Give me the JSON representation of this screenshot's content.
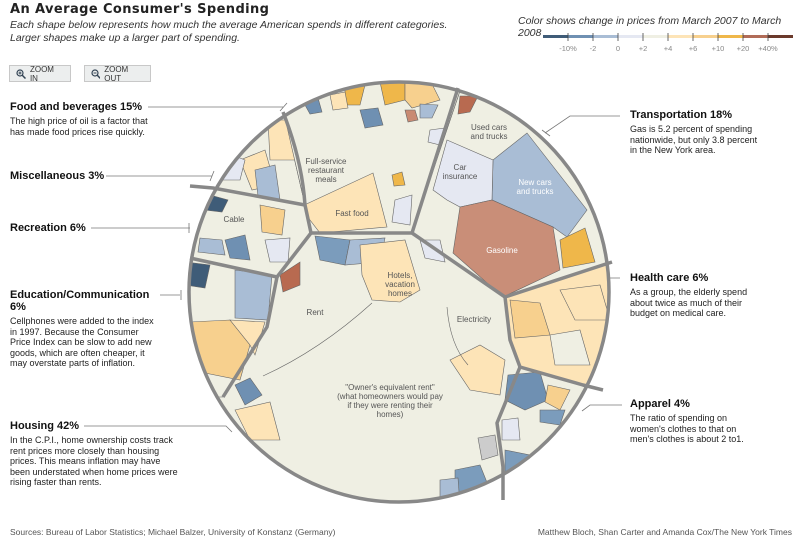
{
  "header": {
    "title": "An Average Consumer's Spending",
    "subtitle_line1": "Each shape below represents how much the average American spends in different categories.",
    "subtitle_line2": "Larger shapes make up a larger part of spending."
  },
  "legend": {
    "title": "Color shows change in prices from March 2007 to March 2008",
    "colors": [
      "#3f5c78",
      "#6f90b2",
      "#a9bdd5",
      "#e5e8f2",
      "#efefe3",
      "#fde4b7",
      "#f7d08e",
      "#efb74a",
      "#b16c58",
      "#6b3a2c"
    ],
    "tick_labels": [
      "-10%",
      "-2",
      "0",
      "+2",
      "+4",
      "+6",
      "+10",
      "+20",
      "+40%"
    ]
  },
  "controls": {
    "zoom_in": "ZOOM IN",
    "zoom_out": "ZOOM OUT"
  },
  "categories": {
    "food": {
      "title": "Food and beverages 15%",
      "text": "The high price of oil is a factor that has made food prices rise quickly."
    },
    "misc": {
      "title": "Miscellaneous 3%"
    },
    "recreation": {
      "title": "Recreation 6%"
    },
    "education": {
      "title": "Education/Communication 6%",
      "text": "Cellphones were added to the index in 1997. Because the Consumer Price Index can be slow to add new goods, which are often cheaper,  it may overstate parts of inflation."
    },
    "housing": {
      "title": "Housing 42%",
      "text": "In the C.P.I., home ownership costs track rent prices more closely than housing prices. This means inflation may have been understated when home prices were rising faster than rents."
    },
    "transportation": {
      "title": "Transportation 18%",
      "text": "Gas is 5.2 percent of spending nationwide, but only 3.8 percent in the New York area."
    },
    "health": {
      "title": "Health care 6%",
      "text": "As a group, the elderly spend about twice as much of their budget on medical care."
    },
    "apparel": {
      "title": "Apparel 4%",
      "text": "The ratio of spending on women's clothes to that on men's clothes is about 2 to1."
    }
  },
  "cells": {
    "full_service": [
      "Full-service",
      "restaurant",
      "meals"
    ],
    "fast_food": "Fast food",
    "cable": "Cable",
    "used_cars": [
      "Used cars",
      "and trucks"
    ],
    "car_insurance": [
      "Car",
      "insurance"
    ],
    "new_cars": [
      "New cars",
      "and trucks"
    ],
    "gasoline": "Gasoline",
    "hotels": [
      "Hotels,",
      "vacation",
      "homes"
    ],
    "rent": "Rent",
    "electricity": "Electricity",
    "owners_rent": [
      "\"Owner's equivalent rent\"",
      "(what homeowners would pay",
      "if they were renting their",
      "homes)"
    ]
  },
  "footer": {
    "sources": "Sources: Bureau of Labor Statistics; Michael Balzer, University of Konstanz (Germany)",
    "credit": "Matthew Bloch, Shan Carter and Amanda Cox/The New York Times"
  }
}
